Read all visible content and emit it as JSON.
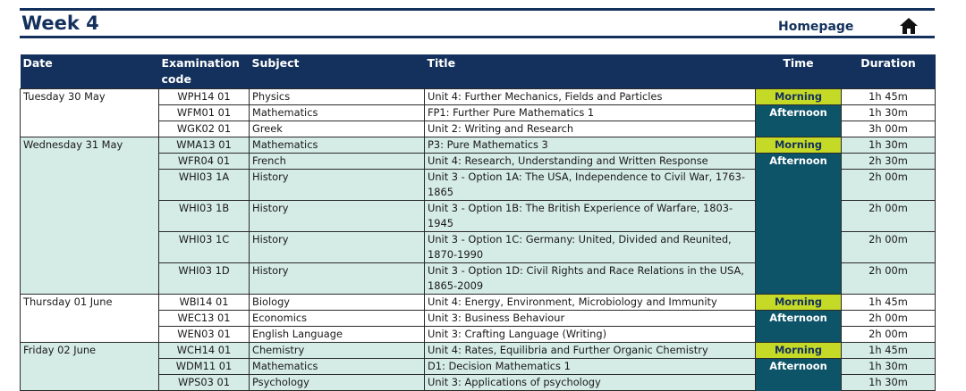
{
  "header": {
    "week_title": "Week 4",
    "homepage_label": "Homepage",
    "home_icon": "home-icon"
  },
  "colors": {
    "navy": "#13315c",
    "morning": "#c5d927",
    "afternoon": "#0d5469",
    "shade": "#d5ebe6"
  },
  "table": {
    "headers": {
      "date": "Date",
      "code_line1": "Examination",
      "code_line2": "code",
      "subject": "Subject",
      "title": "Title",
      "time": "Time",
      "duration": "Duration"
    },
    "days": [
      {
        "date": "Tuesday 30 May",
        "shade": false,
        "rows": [
          {
            "code": "WPH14 01",
            "subject": "Physics",
            "title": "Unit 4: Further Mechanics, Fields and Particles",
            "time": "Morning",
            "duration": "1h 45m"
          },
          {
            "code": "WFM01 01",
            "subject": "Mathematics",
            "title": "FP1: Further Pure Mathematics 1",
            "time": "Afternoon",
            "duration": "1h 30m"
          },
          {
            "code": "WGK02 01",
            "subject": "Greek",
            "title": "Unit 2: Writing and Research",
            "time": "",
            "duration": "3h 00m"
          }
        ]
      },
      {
        "date": "Wednesday 31 May",
        "shade": true,
        "rows": [
          {
            "code": "WMA13 01",
            "subject": "Mathematics",
            "title": "P3: Pure Mathematics 3",
            "time": "Morning",
            "duration": "1h 30m"
          },
          {
            "code": "WFR04 01",
            "subject": "French",
            "title": "Unit 4: Research, Understanding and Written Response",
            "time": "Afternoon",
            "duration": "2h 30m"
          },
          {
            "code": "WHI03 1A",
            "subject": "History",
            "title": "Unit 3 - Option 1A: The USA, Independence to Civil War, 1763-1865",
            "time": "",
            "duration": "2h 00m"
          },
          {
            "code": "WHI03 1B",
            "subject": "History",
            "title": "Unit 3 - Option 1B: The British Experience of Warfare, 1803-1945",
            "time": "",
            "duration": "2h 00m"
          },
          {
            "code": "WHI03 1C",
            "subject": "History",
            "title": "Unit 3 - Option 1C: Germany: United, Divided and Reunited, 1870-1990",
            "time": "",
            "duration": "2h 00m"
          },
          {
            "code": "WHI03 1D",
            "subject": "History",
            "title": "Unit 3 - Option 1D: Civil Rights and Race Relations in the USA, 1865-2009",
            "time": "",
            "duration": "2h 00m"
          }
        ]
      },
      {
        "date": "Thursday 01 June",
        "shade": false,
        "rows": [
          {
            "code": "WBI14 01",
            "subject": "Biology",
            "title": "Unit 4: Energy, Environment, Microbiology and Immunity",
            "time": "Morning",
            "duration": "1h 45m"
          },
          {
            "code": "WEC13 01",
            "subject": "Economics",
            "title": "Unit 3: Business Behaviour",
            "time": "Afternoon",
            "duration": "2h 00m"
          },
          {
            "code": "WEN03 01",
            "subject": "English Language",
            "title": "Unit 3: Crafting Language (Writing)",
            "time": "",
            "duration": "2h 00m"
          }
        ]
      },
      {
        "date": "Friday 02 June",
        "shade": true,
        "rows": [
          {
            "code": "WCH14 01",
            "subject": "Chemistry",
            "title": "Unit 4: Rates, Equilibria and Further Organic Chemistry",
            "time": "Morning",
            "duration": "1h 45m"
          },
          {
            "code": "WDM11 01",
            "subject": "Mathematics",
            "title": "D1: Decision Mathematics 1",
            "time": "Afternoon",
            "duration": "1h 30m"
          },
          {
            "code": "WPS03 01",
            "subject": "Psychology",
            "title": "Unit 3: Applications of psychology",
            "time": "",
            "duration": "1h 30m"
          }
        ]
      }
    ]
  }
}
